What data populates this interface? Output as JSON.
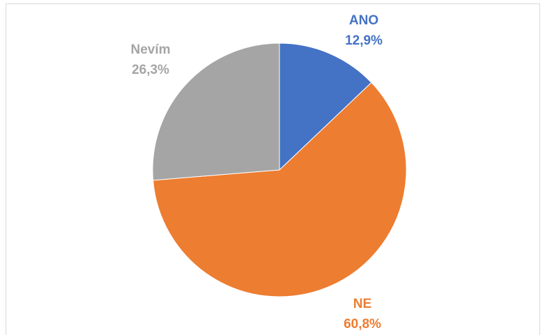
{
  "chart_data": {
    "type": "pie",
    "categories": [
      "ANO",
      "NE",
      "Nevím"
    ],
    "values": [
      12.9,
      60.8,
      26.3
    ],
    "value_labels": [
      "12,9%",
      "60,8%",
      "26,3%"
    ],
    "colors": [
      "#4472c4",
      "#ed7d31",
      "#a5a5a5"
    ]
  }
}
